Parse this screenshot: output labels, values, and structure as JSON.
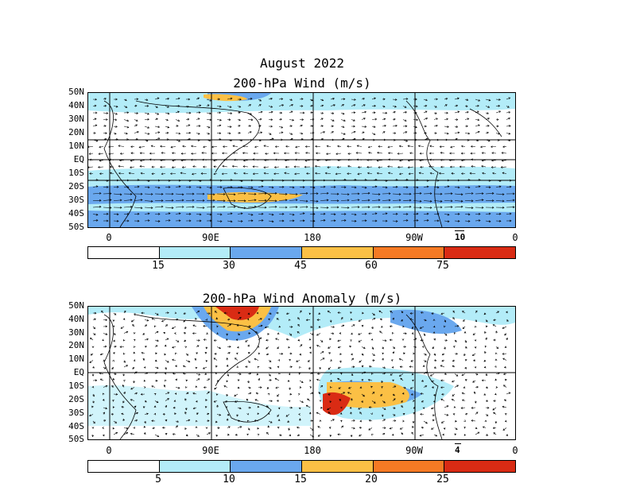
{
  "titles": {
    "month": "August 2022",
    "top": "200-hPa Wind (m/s)",
    "bottom": "200-hPa Wind Anomaly (m/s)"
  },
  "lat_labels": [
    "50N",
    "40N",
    "30N",
    "20N",
    "10N",
    "EQ",
    "10S",
    "20S",
    "30S",
    "40S",
    "50S"
  ],
  "lon_labels": [
    "0",
    "90E",
    "180",
    "90W",
    "0"
  ],
  "top": {
    "ref_vector": "10",
    "colorbar_labels": [
      "15",
      "30",
      "45",
      "60",
      "75"
    ],
    "colorbar_colors": [
      "#ffffff",
      "#b3ecf8",
      "#6aa8ee",
      "#fbc045",
      "#f57a24",
      "#d92b14"
    ]
  },
  "bottom": {
    "ref_vector": "4",
    "colorbar_labels": [
      "5",
      "10",
      "15",
      "20",
      "25"
    ],
    "colorbar_colors": [
      "#ffffff",
      "#b3ecf8",
      "#6aa8ee",
      "#fbc045",
      "#f57a24",
      "#d92b14"
    ]
  }
}
